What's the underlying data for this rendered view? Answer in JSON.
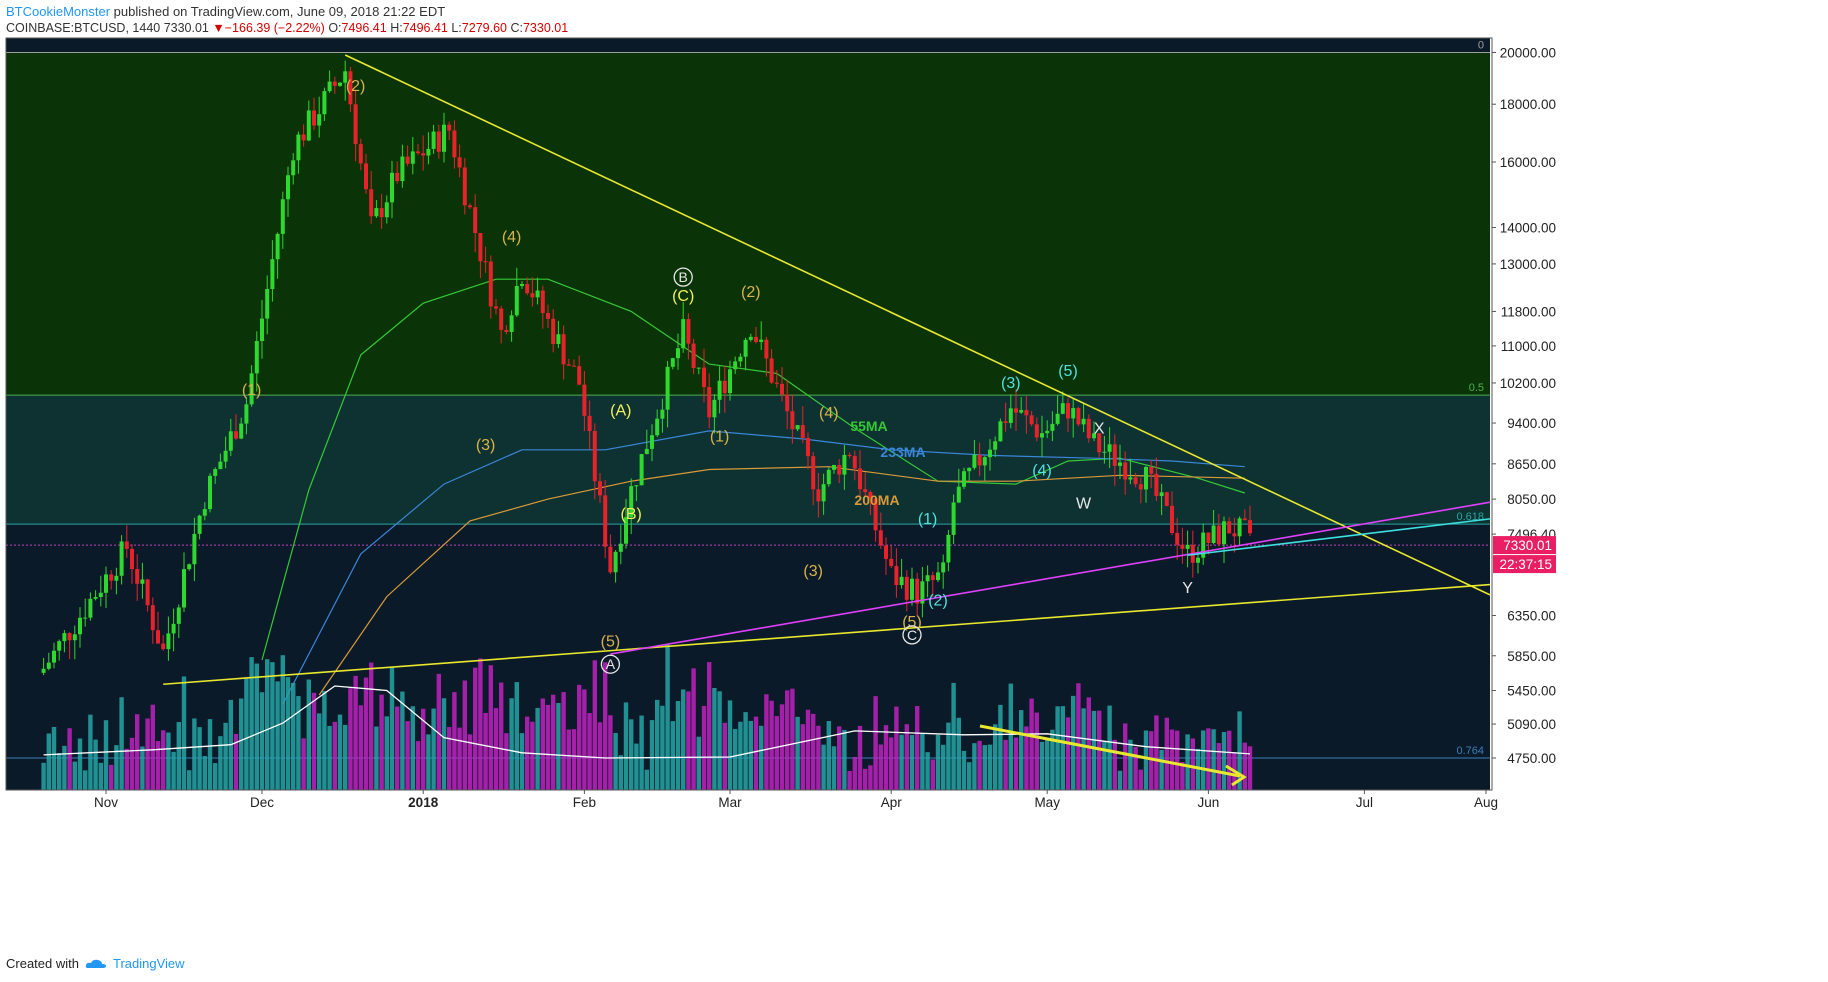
{
  "header": {
    "author": "BTCookieMonster",
    "published": "published on TradingView.com, June 09, 2018 21:22 EDT",
    "symbol": "COINBASE:BTCUSD, 1440",
    "last": "7330.01",
    "arrow": "▼",
    "change": "−166.39 (−2.22%)",
    "o_label": "O:",
    "o": "7496.41",
    "h_label": "H:",
    "h": "7496.41",
    "l_label": "L:",
    "l": "7279.60",
    "c_label": "C:",
    "c": "7330.01"
  },
  "footer": {
    "created_with": "Created with",
    "brand": "TradingView"
  },
  "colors": {
    "up": "#2ed82e",
    "down": "#e8222a",
    "vol_up": "#26a6a6",
    "vol_down": "#c022c0",
    "zone_top": "#0b3308",
    "zone_mid": "#0e3232",
    "zone_low": "#0b1a28",
    "yellow": "#e8e82e",
    "magenta": "#e040fb",
    "cyan": "#3fe0e0",
    "ma55": "#35c835",
    "ma233": "#3a86d8",
    "ma200": "#d99a3a",
    "wave_gold": "#d9b34a",
    "wave_yellow": "#f2f25a",
    "wave_cyan": "#52e0e0",
    "wave_white": "#e8e8e8"
  },
  "chart_data": {
    "type": "candlestick",
    "scale": "log",
    "ylim": [
      4450,
      20600
    ],
    "x_ticks": [
      "Nov",
      "Dec",
      "2018",
      "Feb",
      "Mar",
      "Apr",
      "May",
      "Jun",
      "Jul",
      "Aug"
    ],
    "y_ticks": [
      "20000.00",
      "18000.00",
      "16000.00",
      "14000.00",
      "13000.00",
      "11800.00",
      "11000.00",
      "10200.00",
      "9400.00",
      "8650.00",
      "8050.00",
      "7496.40",
      "6350.00",
      "5850.00",
      "5450.00",
      "5090.00",
      "4750.00"
    ],
    "price_badges": [
      "7330.01",
      "22:37:15"
    ],
    "fib_levels": [
      {
        "label": "0",
        "price": 20000
      },
      {
        "label": "0.5",
        "price": 9950
      },
      {
        "label": "0.618",
        "price": 7650
      },
      {
        "label": "0.764",
        "price": 4750
      }
    ],
    "ma_labels": [
      "55MA",
      "233MA",
      "200MA"
    ],
    "wave_labels": [
      {
        "text": "(1)",
        "date": "2017-11-29",
        "price": 9950
      },
      {
        "text": "(2)",
        "date": "2017-12-19",
        "price": 18500
      },
      {
        "text": "(3)",
        "date": "2018-01-13",
        "price": 8900
      },
      {
        "text": "(4)",
        "date": "2018-01-18",
        "price": 13600
      },
      {
        "text": "(5)",
        "date": "2018-02-06",
        "price": 5960
      },
      {
        "text": "A",
        "date": "2018-02-06",
        "price": 5680
      },
      {
        "text": "(A)",
        "date": "2018-02-08",
        "price": 9550
      },
      {
        "text": "(B)",
        "date": "2018-02-10",
        "price": 7730
      },
      {
        "text": "B",
        "date": "2018-02-20",
        "price": 12500
      },
      {
        "text": "(C)",
        "date": "2018-02-20",
        "price": 12050
      },
      {
        "text": "(1)",
        "date": "2018-02-27",
        "price": 9050
      },
      {
        "text": "(2)",
        "date": "2018-03-05",
        "price": 12150
      },
      {
        "text": "(4)",
        "date": "2018-03-20",
        "price": 9500
      },
      {
        "text": "(3)",
        "date": "2018-03-17",
        "price": 6880
      },
      {
        "text": "(1)",
        "date": "2018-04-08",
        "price": 7650
      },
      {
        "text": "(2)",
        "date": "2018-04-10",
        "price": 6480
      },
      {
        "text": "(5)",
        "date": "2018-04-05",
        "price": 6200
      },
      {
        "text": "C",
        "date": "2018-04-05",
        "price": 6030
      },
      {
        "text": "(3)",
        "date": "2018-04-24",
        "price": 10100
      },
      {
        "text": "(4)",
        "date": "2018-04-30",
        "price": 8450
      },
      {
        "text": "(5)",
        "date": "2018-05-05",
        "price": 10350
      },
      {
        "text": "X",
        "date": "2018-05-11",
        "price": 9200
      },
      {
        "text": "W",
        "date": "2018-05-08",
        "price": 7900
      },
      {
        "text": "Y",
        "date": "2018-05-28",
        "price": 6650
      }
    ],
    "trendlines": [
      {
        "name": "upper-resistance",
        "from": [
          "2017-12-17",
          19900
        ],
        "to": [
          "2018-08-01",
          6400
        ]
      },
      {
        "name": "lower-support",
        "from": [
          "2017-11-12",
          5520
        ],
        "to": [
          "2018-08-01",
          6800
        ]
      },
      {
        "name": "magenta-support",
        "from": [
          "2018-02-06",
          5870
        ],
        "to": [
          "2018-08-01",
          8100
        ]
      },
      {
        "name": "cyan-support",
        "from": [
          "2018-05-28",
          7180
        ],
        "to": [
          "2018-08-01",
          7800
        ]
      }
    ],
    "candles_ohlc_sample": [
      {
        "date": "2017-10-25",
        "o": 5600,
        "h": 5800,
        "l": 5500,
        "c": 5750
      },
      {
        "date": "2017-11-08",
        "o": 7400,
        "h": 7800,
        "l": 7100,
        "c": 7150
      },
      {
        "date": "2017-11-12",
        "o": 6300,
        "h": 6350,
        "l": 5550,
        "c": 5900
      },
      {
        "date": "2017-11-28",
        "o": 9700,
        "h": 9900,
        "l": 9500,
        "c": 9850
      },
      {
        "date": "2017-12-07",
        "o": 14000,
        "h": 17000,
        "l": 13800,
        "c": 16800
      },
      {
        "date": "2017-12-17",
        "o": 19300,
        "h": 19900,
        "l": 18800,
        "c": 19100
      },
      {
        "date": "2017-12-22",
        "o": 15500,
        "h": 15900,
        "l": 10400,
        "c": 13900
      },
      {
        "date": "2018-01-06",
        "o": 16900,
        "h": 17200,
        "l": 16100,
        "c": 17100
      },
      {
        "date": "2018-01-16",
        "o": 13600,
        "h": 13700,
        "l": 9300,
        "c": 11200
      },
      {
        "date": "2018-02-06",
        "o": 6900,
        "h": 7900,
        "l": 5950,
        "c": 7700
      },
      {
        "date": "2018-02-20",
        "o": 11200,
        "h": 11800,
        "l": 11000,
        "c": 11100
      },
      {
        "date": "2018-03-05",
        "o": 11500,
        "h": 11700,
        "l": 11300,
        "c": 11400
      },
      {
        "date": "2018-03-18",
        "o": 8200,
        "h": 8300,
        "l": 7450,
        "c": 8200
      },
      {
        "date": "2018-04-06",
        "o": 6800,
        "h": 6900,
        "l": 6550,
        "c": 6600
      },
      {
        "date": "2018-04-12",
        "o": 6900,
        "h": 8000,
        "l": 6800,
        "c": 7900
      },
      {
        "date": "2018-05-05",
        "o": 9700,
        "h": 9950,
        "l": 9600,
        "c": 9800
      },
      {
        "date": "2018-05-28",
        "o": 7350,
        "h": 7450,
        "l": 7100,
        "c": 7150
      },
      {
        "date": "2018-06-09",
        "o": 7496.41,
        "h": 7496.41,
        "l": 7279.6,
        "c": 7330.01
      }
    ],
    "volume_trend_label": "declining volume"
  }
}
